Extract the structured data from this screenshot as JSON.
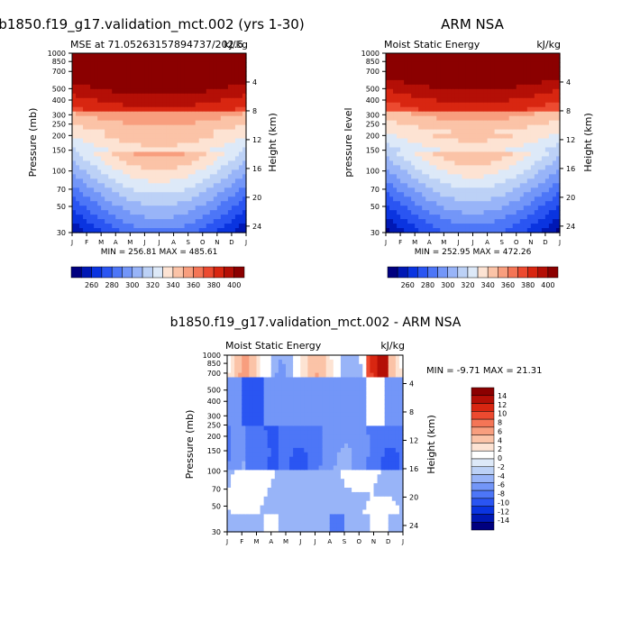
{
  "chart_data": [
    {
      "type": "heatmap",
      "panel": "model",
      "title": "b1850.f19_g17.validation_mct.002 (yrs 1-30)",
      "subtitle_left": "MSE at 71.05263157894737/202.5",
      "subtitle_right": "kJ/kg",
      "ylabel": "Pressure (mb)",
      "ylabel_right": "Height (km)",
      "months": [
        "J",
        "F",
        "M",
        "A",
        "M",
        "J",
        "J",
        "A",
        "S",
        "O",
        "N",
        "D",
        "J"
      ],
      "pressure_ticks": [
        "30",
        "50",
        "70",
        "100",
        "150",
        "200",
        "250",
        "300",
        "400",
        "500",
        "700",
        "850",
        "1000"
      ],
      "height_ticks": [
        "24",
        "20",
        "16",
        "12",
        "8",
        "4"
      ],
      "minmax": "MIN = 256.81 MAX = 485.61",
      "colorbar_labels": [
        "260",
        "280",
        "300",
        "320",
        "340",
        "360",
        "380",
        "400"
      ]
    },
    {
      "type": "heatmap",
      "panel": "obs",
      "title": "ARM NSA",
      "subtitle_left": "Moist Static Energy",
      "subtitle_right": "kJ/kg",
      "ylabel": "pressure level",
      "ylabel_right": "Height (km)",
      "months": [
        "J",
        "F",
        "M",
        "A",
        "M",
        "J",
        "J",
        "A",
        "S",
        "O",
        "N",
        "D",
        "J"
      ],
      "pressure_ticks": [
        "30",
        "50",
        "70",
        "100",
        "150",
        "200",
        "250",
        "300",
        "400",
        "500",
        "700",
        "850",
        "1000"
      ],
      "height_ticks": [
        "24",
        "20",
        "16",
        "12",
        "8",
        "4"
      ],
      "minmax": "MIN = 252.95 MAX = 472.26",
      "colorbar_labels": [
        "260",
        "280",
        "300",
        "320",
        "340",
        "360",
        "380",
        "400"
      ]
    },
    {
      "type": "heatmap",
      "panel": "difference",
      "title": "b1850.f19_g17.validation_mct.002 - ARM NSA",
      "subtitle_left": "Moist Static Energy",
      "subtitle_right": "kJ/kg",
      "ylabel": "Pressure (mb)",
      "ylabel_right": "Height (km)",
      "months": [
        "J",
        "F",
        "M",
        "A",
        "M",
        "J",
        "J",
        "A",
        "S",
        "O",
        "N",
        "D",
        "J"
      ],
      "pressure_ticks": [
        "30",
        "50",
        "70",
        "100",
        "150",
        "200",
        "250",
        "300",
        "400",
        "500",
        "700",
        "850",
        "1000"
      ],
      "height_ticks": [
        "24",
        "20",
        "16",
        "12",
        "8",
        "4"
      ],
      "minmax": "MIN =  -9.71 MAX =  21.31",
      "colorbar_labels": [
        "14",
        "12",
        "10",
        "8",
        "6",
        "4",
        "2",
        "0",
        "-2",
        "-4",
        "-6",
        "-8",
        "-10",
        "-12",
        "-14"
      ]
    }
  ],
  "colors": {
    "abs_scale": [
      "#00007f",
      "#0018b4",
      "#0a34e0",
      "#2a55f2",
      "#4d76f7",
      "#7396f8",
      "#98b4f8",
      "#bcd1f6",
      "#dde9f8",
      "#fde3d3",
      "#fbc3a7",
      "#f89e7e",
      "#f47556",
      "#ec4a30",
      "#d82611",
      "#b40f06",
      "#8b0000"
    ],
    "diff_scale": [
      "#00007f",
      "#0018b4",
      "#0a34e0",
      "#2a55f2",
      "#4d76f7",
      "#7396f8",
      "#98b4f8",
      "#bcd1f6",
      "#dde9f8",
      "#ffffff",
      "#fde3d3",
      "#fbc3a7",
      "#f89e7e",
      "#f47556",
      "#ec4a30",
      "#d82611",
      "#b40f06",
      "#8b0000"
    ]
  }
}
